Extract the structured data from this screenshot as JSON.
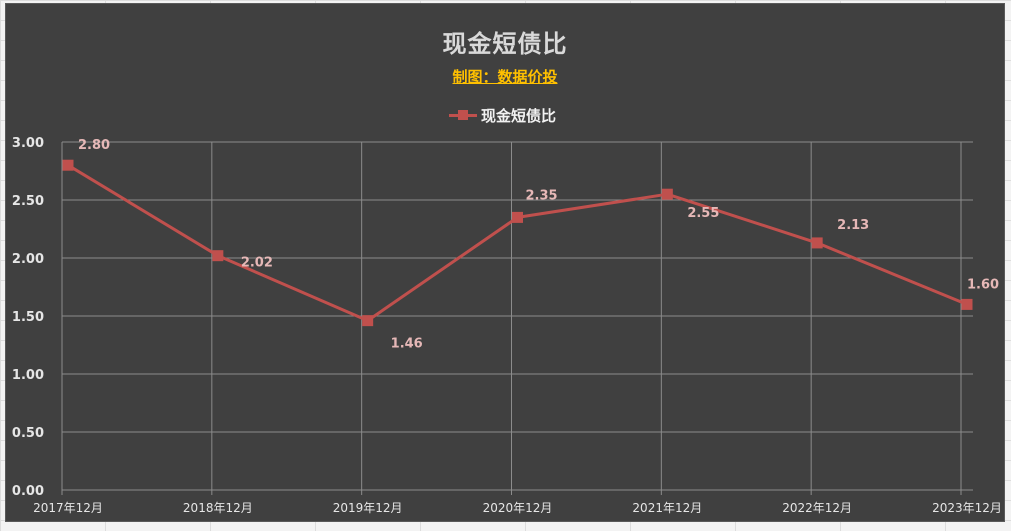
{
  "chart": {
    "title": "现金短债比",
    "subtitle": "制图：数据价投",
    "legend_label": "现金短债比",
    "colors": {
      "background": "#404040",
      "line": "#c0504d",
      "title": "#d9d9d9",
      "subtitle": "#ffc000",
      "data_label": "#e6b8b7",
      "gridline": "#8c8c8c"
    }
  },
  "chart_data": {
    "type": "line",
    "title": "现金短债比",
    "subtitle": "制图：数据价投",
    "xlabel": "",
    "ylabel": "",
    "categories": [
      "2017年12月",
      "2018年12月",
      "2019年12月",
      "2020年12月",
      "2021年12月",
      "2022年12月",
      "2023年12月"
    ],
    "series": [
      {
        "name": "现金短债比",
        "values": [
          2.8,
          2.02,
          1.46,
          2.35,
          2.55,
          2.13,
          1.6
        ],
        "marker": "square",
        "color": "#c0504d"
      }
    ],
    "data_labels": [
      "2.80",
      "2.02",
      "1.46",
      "2.35",
      "2.55",
      "2.13",
      "1.60"
    ],
    "yticks": [
      "0.00",
      "0.50",
      "1.00",
      "1.50",
      "2.00",
      "2.50",
      "3.00"
    ],
    "ylim": [
      0,
      3
    ],
    "grid": true,
    "legend_position": "top"
  }
}
